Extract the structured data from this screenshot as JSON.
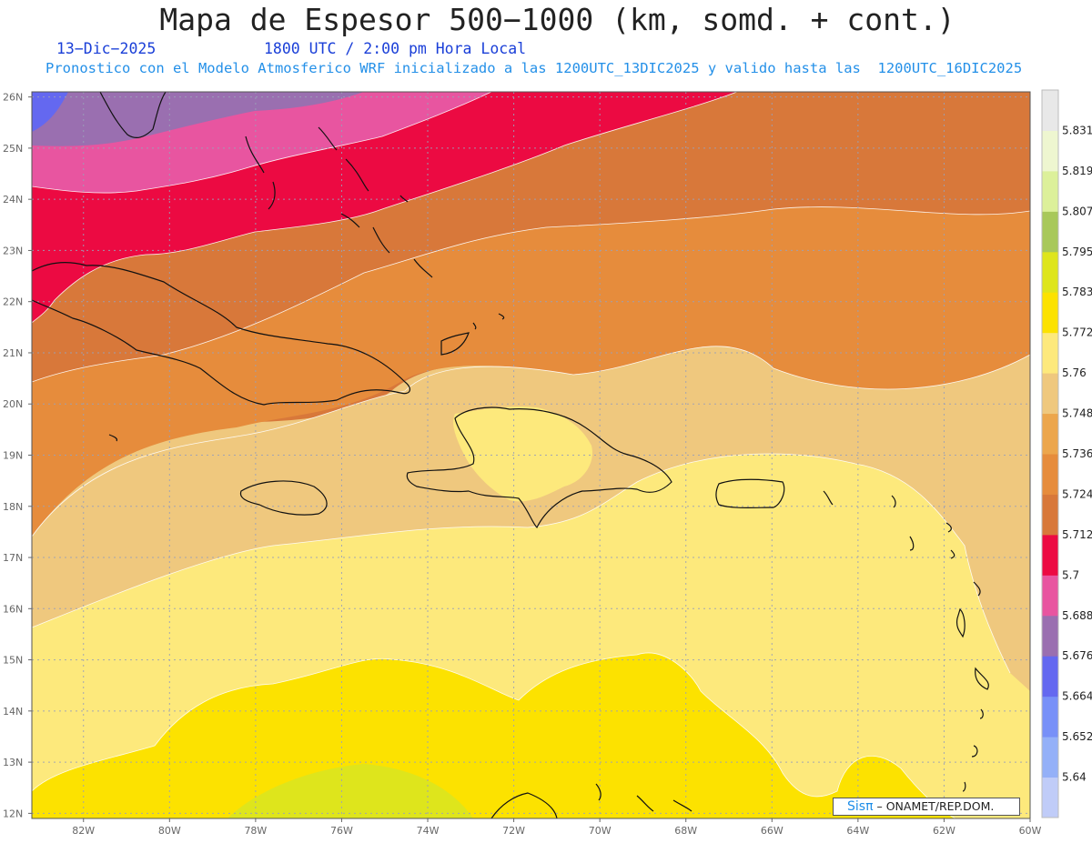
{
  "header": {
    "title": "Mapa de Espesor 500−1000 (km, somd. + cont.)",
    "date": "13−Dic−2025",
    "time": "1800 UTC / 2:00 pm Hora Local",
    "description": "Pronostico con el Modelo Atmosferico WRF inicializado a las 1200UTC_13DIC2025 y valido hasta las  1200UTC_16DIC2025"
  },
  "map": {
    "lon_range": [
      -83.2,
      -60
    ],
    "lat_range": [
      11.9,
      26.1
    ],
    "lat_labels": [
      "12N",
      "13N",
      "14N",
      "15N",
      "16N",
      "17N",
      "18N",
      "19N",
      "20N",
      "21N",
      "22N",
      "23N",
      "24N",
      "25N",
      "26N"
    ],
    "lon_labels": [
      "82W",
      "80W",
      "78W",
      "76W",
      "74W",
      "72W",
      "70W",
      "68W",
      "66W",
      "64W",
      "62W",
      "60W"
    ],
    "grid": true
  },
  "colorbar": {
    "labels": [
      "5.64",
      "5.652",
      "5.664",
      "5.676",
      "5.688",
      "5.7",
      "5.712",
      "5.724",
      "5.736",
      "5.748",
      "5.76",
      "5.772",
      "5.783",
      "5.795",
      "5.807",
      "5.819",
      "5.831"
    ],
    "colors": [
      "#c0ccf8",
      "#94b0f8",
      "#7890f8",
      "#6468f0",
      "#9a6fb0",
      "#e855a0",
      "#ec0a42",
      "#d8783a",
      "#e68c3c",
      "#eca64c",
      "#efc87e",
      "#fde97c",
      "#fce200",
      "#dee51c",
      "#a8c85a",
      "#dcf09a",
      "#eef6d0",
      "#e8e8e8"
    ]
  },
  "credit": {
    "logo": "Sisπ",
    "text": "– ONAMET/REP.DOM."
  }
}
